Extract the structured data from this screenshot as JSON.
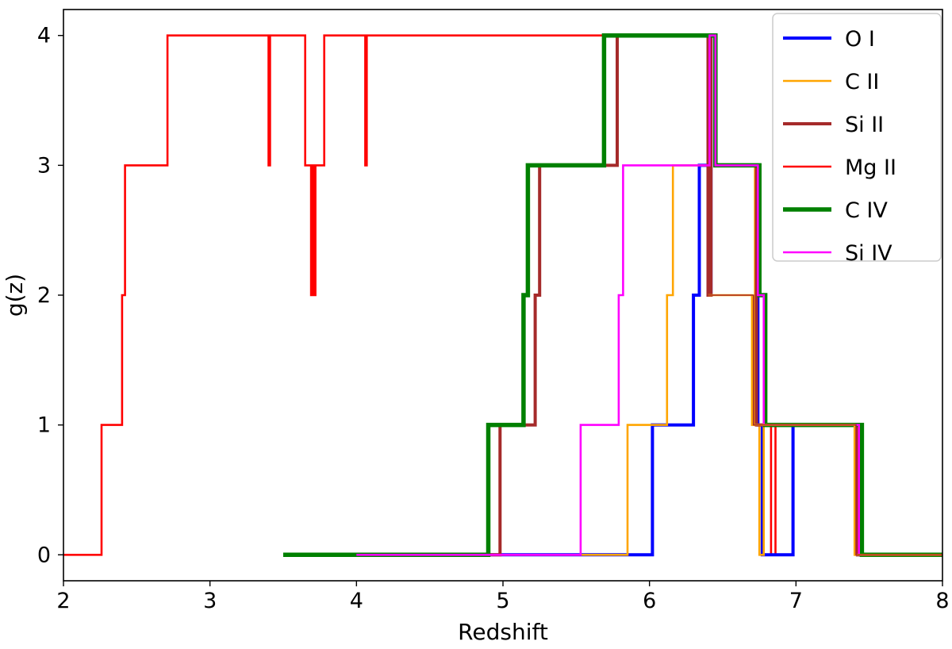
{
  "chart_data": {
    "type": "line",
    "title": "",
    "xlabel": "Redshift",
    "ylabel": "g(z)",
    "xlim": [
      2,
      8
    ],
    "ylim": [
      -0.2,
      4.2
    ],
    "xticks": [
      "2",
      "3",
      "4",
      "5",
      "6",
      "7",
      "8"
    ],
    "yticks": [
      "0",
      "1",
      "2",
      "3",
      "4"
    ],
    "grid": false,
    "legend_position": "top-right",
    "series": [
      {
        "name": "Mg II",
        "color": "#ff0000",
        "width": "medium",
        "x": [
          2.0,
          2.26,
          2.26,
          2.4,
          2.4,
          2.42,
          2.42,
          2.71,
          2.71,
          3.4,
          3.4,
          3.41,
          3.41,
          3.65,
          3.65,
          3.69,
          3.69,
          3.7,
          3.7,
          3.71,
          3.71,
          3.72,
          3.72,
          3.78,
          3.78,
          4.06,
          4.06,
          4.07,
          4.07,
          5.8
        ],
        "y": [
          0,
          0,
          1,
          1,
          2,
          2,
          3,
          3,
          4,
          4,
          3,
          3,
          4,
          4,
          3,
          3,
          2,
          2,
          3,
          3,
          2,
          2,
          3,
          3,
          4,
          4,
          3,
          3,
          4,
          4
        ]
      },
      {
        "name": "Mg II",
        "color": "#ff0000",
        "width": "medium",
        "x": [
          6.72,
          6.83,
          6.83,
          6.86,
          6.86,
          7.45
        ],
        "y": [
          1,
          1,
          0,
          0,
          1,
          1
        ]
      },
      {
        "name": "O I",
        "color": "#0000ff",
        "width": "thick",
        "x": [
          4.0,
          6.02,
          6.02,
          6.3,
          6.3,
          6.34,
          6.34,
          6.4,
          6.4,
          6.42,
          6.42,
          6.45,
          6.45,
          6.74,
          6.74,
          6.77,
          6.77,
          6.98,
          6.98,
          7.42,
          7.42,
          8.0
        ],
        "y": [
          0,
          0,
          1,
          1,
          2,
          2,
          3,
          3,
          2,
          2,
          4,
          4,
          3,
          3,
          1,
          1,
          0,
          0,
          1,
          1,
          0,
          0
        ]
      },
      {
        "name": "C II",
        "color": "#ffa500",
        "width": "medium",
        "x": [
          4.0,
          5.85,
          5.85,
          6.12,
          6.12,
          6.16,
          6.16,
          6.4,
          6.4,
          6.42,
          6.42,
          6.45,
          6.45,
          6.72,
          6.72,
          6.75,
          6.75,
          6.78,
          6.78,
          7.42,
          7.42,
          8.0
        ],
        "y": [
          0,
          0,
          1,
          1,
          2,
          2,
          3,
          3,
          2,
          2,
          4,
          4,
          3,
          3,
          1,
          1,
          0,
          0,
          1,
          1,
          0,
          0
        ]
      },
      {
        "name": "Si II",
        "color": "#a52a2a",
        "width": "thick",
        "x": [
          4.0,
          4.98,
          4.98,
          5.22,
          5.22,
          5.25,
          5.25,
          5.78,
          5.78,
          6.4,
          6.4,
          6.42,
          6.42,
          6.45,
          6.45,
          6.73,
          6.73,
          6.76,
          6.76,
          7.42,
          7.42,
          8.0
        ],
        "y": [
          0,
          0,
          1,
          1,
          2,
          2,
          3,
          3,
          4,
          4,
          2,
          2,
          4,
          4,
          3,
          3,
          1,
          1,
          1,
          1,
          0,
          0
        ]
      },
      {
        "name": "C IV",
        "color": "#008000",
        "width": "extra",
        "x": [
          3.5,
          4.9,
          4.9,
          5.14,
          5.14,
          5.17,
          5.17,
          5.69,
          5.69,
          6.45,
          6.45,
          6.75,
          6.75,
          6.79,
          6.79,
          7.45,
          7.45,
          8.0
        ],
        "y": [
          0,
          0,
          1,
          1,
          2,
          2,
          3,
          3,
          4,
          4,
          3,
          3,
          2,
          2,
          1,
          1,
          0,
          0
        ]
      },
      {
        "name": "Si IV",
        "color": "#ff00ff",
        "width": "medium",
        "x": [
          4.0,
          5.53,
          5.53,
          5.79,
          5.79,
          5.82,
          5.82,
          6.41,
          6.41,
          6.45,
          6.45,
          6.74,
          6.74,
          6.78,
          6.78,
          7.43,
          7.43,
          8.0
        ],
        "y": [
          0,
          0,
          1,
          1,
          2,
          2,
          3,
          3,
          4,
          4,
          3,
          3,
          2,
          2,
          1,
          1,
          0,
          0
        ]
      },
      {
        "name": "C II",
        "color": "#ffa500",
        "width": "medium",
        "x": [
          6.4,
          6.7,
          6.7,
          6.72,
          6.72,
          7.4,
          7.4,
          8.0
        ],
        "y": [
          2,
          2,
          1,
          1,
          1,
          1,
          0,
          0
        ]
      },
      {
        "name": "Si II",
        "color": "#a52a2a",
        "width": "thin",
        "x": [
          6.4,
          6.71,
          6.71,
          6.73,
          6.73,
          7.41,
          7.41,
          8.0
        ],
        "y": [
          2,
          2,
          1,
          1,
          1,
          1,
          0,
          0
        ]
      }
    ],
    "legend": [
      {
        "label": "O I",
        "color": "#0000ff",
        "width": "thick"
      },
      {
        "label": "C II",
        "color": "#ffa500",
        "width": "medium"
      },
      {
        "label": "Si II",
        "color": "#a52a2a",
        "width": "thick"
      },
      {
        "label": "Mg II",
        "color": "#ff0000",
        "width": "medium"
      },
      {
        "label": "C IV",
        "color": "#008000",
        "width": "extra"
      },
      {
        "label": "Si IV",
        "color": "#ff00ff",
        "width": "medium"
      }
    ]
  }
}
